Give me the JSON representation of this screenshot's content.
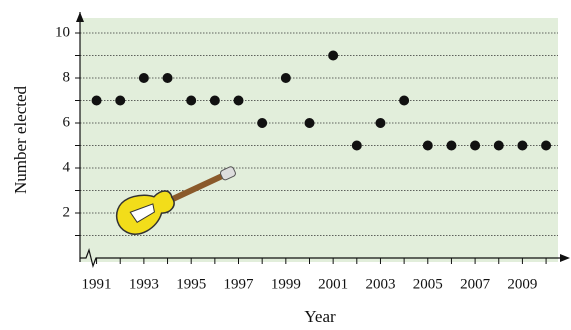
{
  "chart_data": {
    "type": "scatter",
    "x_label": "Year",
    "y_label": "Number elected",
    "x": [
      1991,
      1992,
      1993,
      1994,
      1995,
      1996,
      1997,
      1998,
      1999,
      2000,
      2001,
      2002,
      2003,
      2004,
      2005,
      2006,
      2007,
      2008,
      2009,
      2010
    ],
    "values": [
      7,
      7,
      8,
      8,
      7,
      7,
      7,
      6,
      8,
      6,
      9,
      5,
      6,
      7,
      5,
      5,
      5,
      5,
      5,
      5
    ],
    "color": "#111111",
    "xlim": [
      1990.3,
      2010.8
    ],
    "xticks": [
      1991,
      1993,
      1995,
      1997,
      1999,
      2001,
      2003,
      2005,
      2007,
      2009
    ],
    "x_minor_ticks": [
      1992,
      1994,
      1996,
      1998,
      2000,
      2002,
      2004,
      2006,
      2008,
      2010
    ],
    "ylim": [
      0,
      10.8
    ],
    "yticks": [
      2,
      4,
      6,
      8,
      10
    ],
    "y_minor_ticks": [
      1,
      3,
      5,
      7,
      9
    ],
    "grid": true
  }
}
